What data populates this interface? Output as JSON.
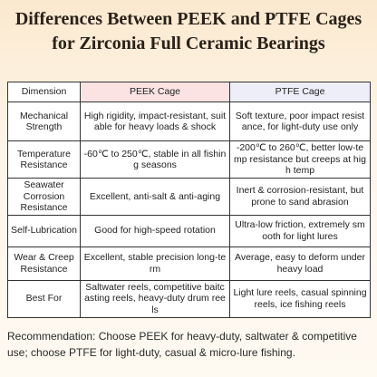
{
  "header": {
    "title": "Differences Between PEEK and PTFE Cages for Zirconia Full Ceramic Bearings"
  },
  "table": {
    "columns": [
      "Dimension",
      "PEEK Cage",
      "PTFE Cage"
    ],
    "rows": [
      [
        "Mechanical Strength",
        "High rigidity, impact-resistant, suitable for heavy loads & shock",
        "Soft texture, poor impact resistance, for light-duty use only"
      ],
      [
        "Temperature Resistance",
        "-60℃ to 250℃, stable in all fishing seasons",
        "-200℃ to 260℃, better low-temp resistance but creeps at high temp"
      ],
      [
        "Seawater Corrosion Resistance",
        "Excellent, anti-salt & anti-aging",
        "Inert & corrosion-resistant, but prone to sand abrasion"
      ],
      [
        "Self-Lubrication",
        "Good for high-speed rotation",
        "Ultra-low friction, extremely smooth for light lures"
      ],
      [
        "Wear & Creep Resistance",
        "Excellent, stable precision long-term",
        "Average, easy to deform under heavy load"
      ],
      [
        "Best For",
        "Saltwater reels, competitive baitcasting reels, heavy-duty drum reels",
        "Light lure reels, casual spinning reels, ice fishing reels"
      ]
    ]
  },
  "recommendation": "Recommendation: Choose PEEK for heavy-duty, saltwater & competitive use; choose PTFE for light-duty, casual & micro-lure fishing."
}
